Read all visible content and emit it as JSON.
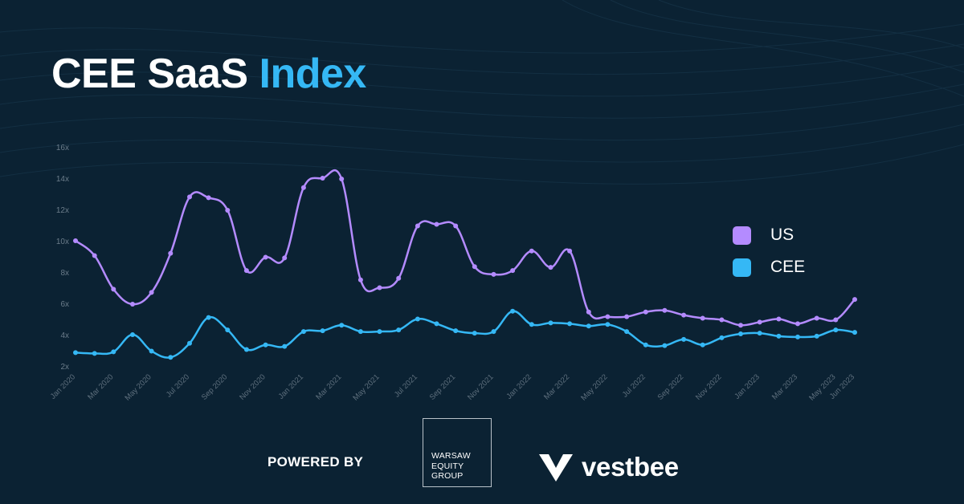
{
  "header": {
    "title_main": "CEE SaaS",
    "title_accent": "Index"
  },
  "legend": {
    "items": [
      {
        "label": "US",
        "color": "#b48bff"
      },
      {
        "label": "CEE",
        "color": "#35b8f5"
      }
    ]
  },
  "footer": {
    "powered_by": "POWERED BY",
    "weg_lines": [
      "WARSAW",
      "EQUITY",
      "GROUP"
    ],
    "vestbee_name": "vestbee"
  },
  "chart_data": {
    "type": "line",
    "title": "",
    "xlabel": "",
    "ylabel": "",
    "ylim": [
      2,
      16
    ],
    "y_ticks": [
      "2x",
      "4x",
      "6x",
      "8x",
      "10x",
      "12x",
      "14x",
      "16x"
    ],
    "y_tick_values": [
      2,
      4,
      6,
      8,
      10,
      12,
      14,
      16
    ],
    "categories": [
      "Jan 2020",
      "Feb 2020",
      "Mar 2020",
      "Apr 2020",
      "May 2020",
      "Jun 2020",
      "Jul 2020",
      "Aug 2020",
      "Sep 2020",
      "Oct 2020",
      "Nov 2020",
      "Dec 2020",
      "Jan 2021",
      "Feb 2021",
      "Mar 2021",
      "Apr 2021",
      "May 2021",
      "Jun 2021",
      "Jul 2021",
      "Aug 2021",
      "Sep 2021",
      "Oct 2021",
      "Nov 2021",
      "Dec 2021",
      "Jan 2022",
      "Feb 2022",
      "Mar 2022",
      "Apr 2022",
      "May 2022",
      "Jun 2022",
      "Jul 2022",
      "Aug 2022",
      "Sep 2022",
      "Oct 2022",
      "Nov 2022",
      "Dec 2022",
      "Jan 2023",
      "Feb 2023",
      "Mar 2023",
      "Apr 2023",
      "May 2023",
      "Jun 2023"
    ],
    "x_tick_labels": [
      "Jan 2020",
      "",
      "Mar 2020",
      "",
      "May 2020",
      "",
      "Jul 2020",
      "",
      "Sep 2020",
      "",
      "Nov 2020",
      "",
      "Jan 2021",
      "",
      "Mar 2021",
      "",
      "May 2021",
      "",
      "Jul 2021",
      "",
      "Sep 2021",
      "",
      "Nov 2021",
      "",
      "Jan 2022",
      "",
      "Mar 2022",
      "",
      "May 2022",
      "",
      "Jul 2022",
      "",
      "Sep 2022",
      "",
      "Nov 2022",
      "",
      "Jan 2023",
      "",
      "Mar 2023",
      "",
      "May 2023",
      "Jun 2023"
    ],
    "series": [
      {
        "name": "US",
        "color": "#b48bff",
        "values": [
          10.0,
          9.05,
          6.9,
          5.95,
          6.7,
          9.2,
          12.8,
          12.75,
          11.95,
          8.1,
          8.95,
          8.9,
          13.4,
          14.0,
          13.95,
          7.5,
          7.0,
          7.6,
          10.95,
          11.05,
          10.95,
          8.35,
          7.85,
          8.1,
          9.35,
          8.3,
          9.35,
          5.45,
          5.15,
          5.15,
          5.45,
          5.55,
          5.25,
          5.05,
          4.95,
          4.6,
          4.8,
          5.0,
          4.7,
          5.05,
          4.95,
          6.25
        ]
      },
      {
        "name": "CEE",
        "color": "#35b8f5",
        "values": [
          2.85,
          2.8,
          2.9,
          4.0,
          2.95,
          2.55,
          3.45,
          5.1,
          4.3,
          3.05,
          3.35,
          3.25,
          4.2,
          4.25,
          4.6,
          4.2,
          4.2,
          4.3,
          5.0,
          4.7,
          4.25,
          4.1,
          4.2,
          5.5,
          4.65,
          4.75,
          4.7,
          4.55,
          4.65,
          4.2,
          3.35,
          3.3,
          3.7,
          3.35,
          3.8,
          4.05,
          4.1,
          3.9,
          3.85,
          3.9,
          4.3,
          4.15
        ]
      }
    ]
  }
}
